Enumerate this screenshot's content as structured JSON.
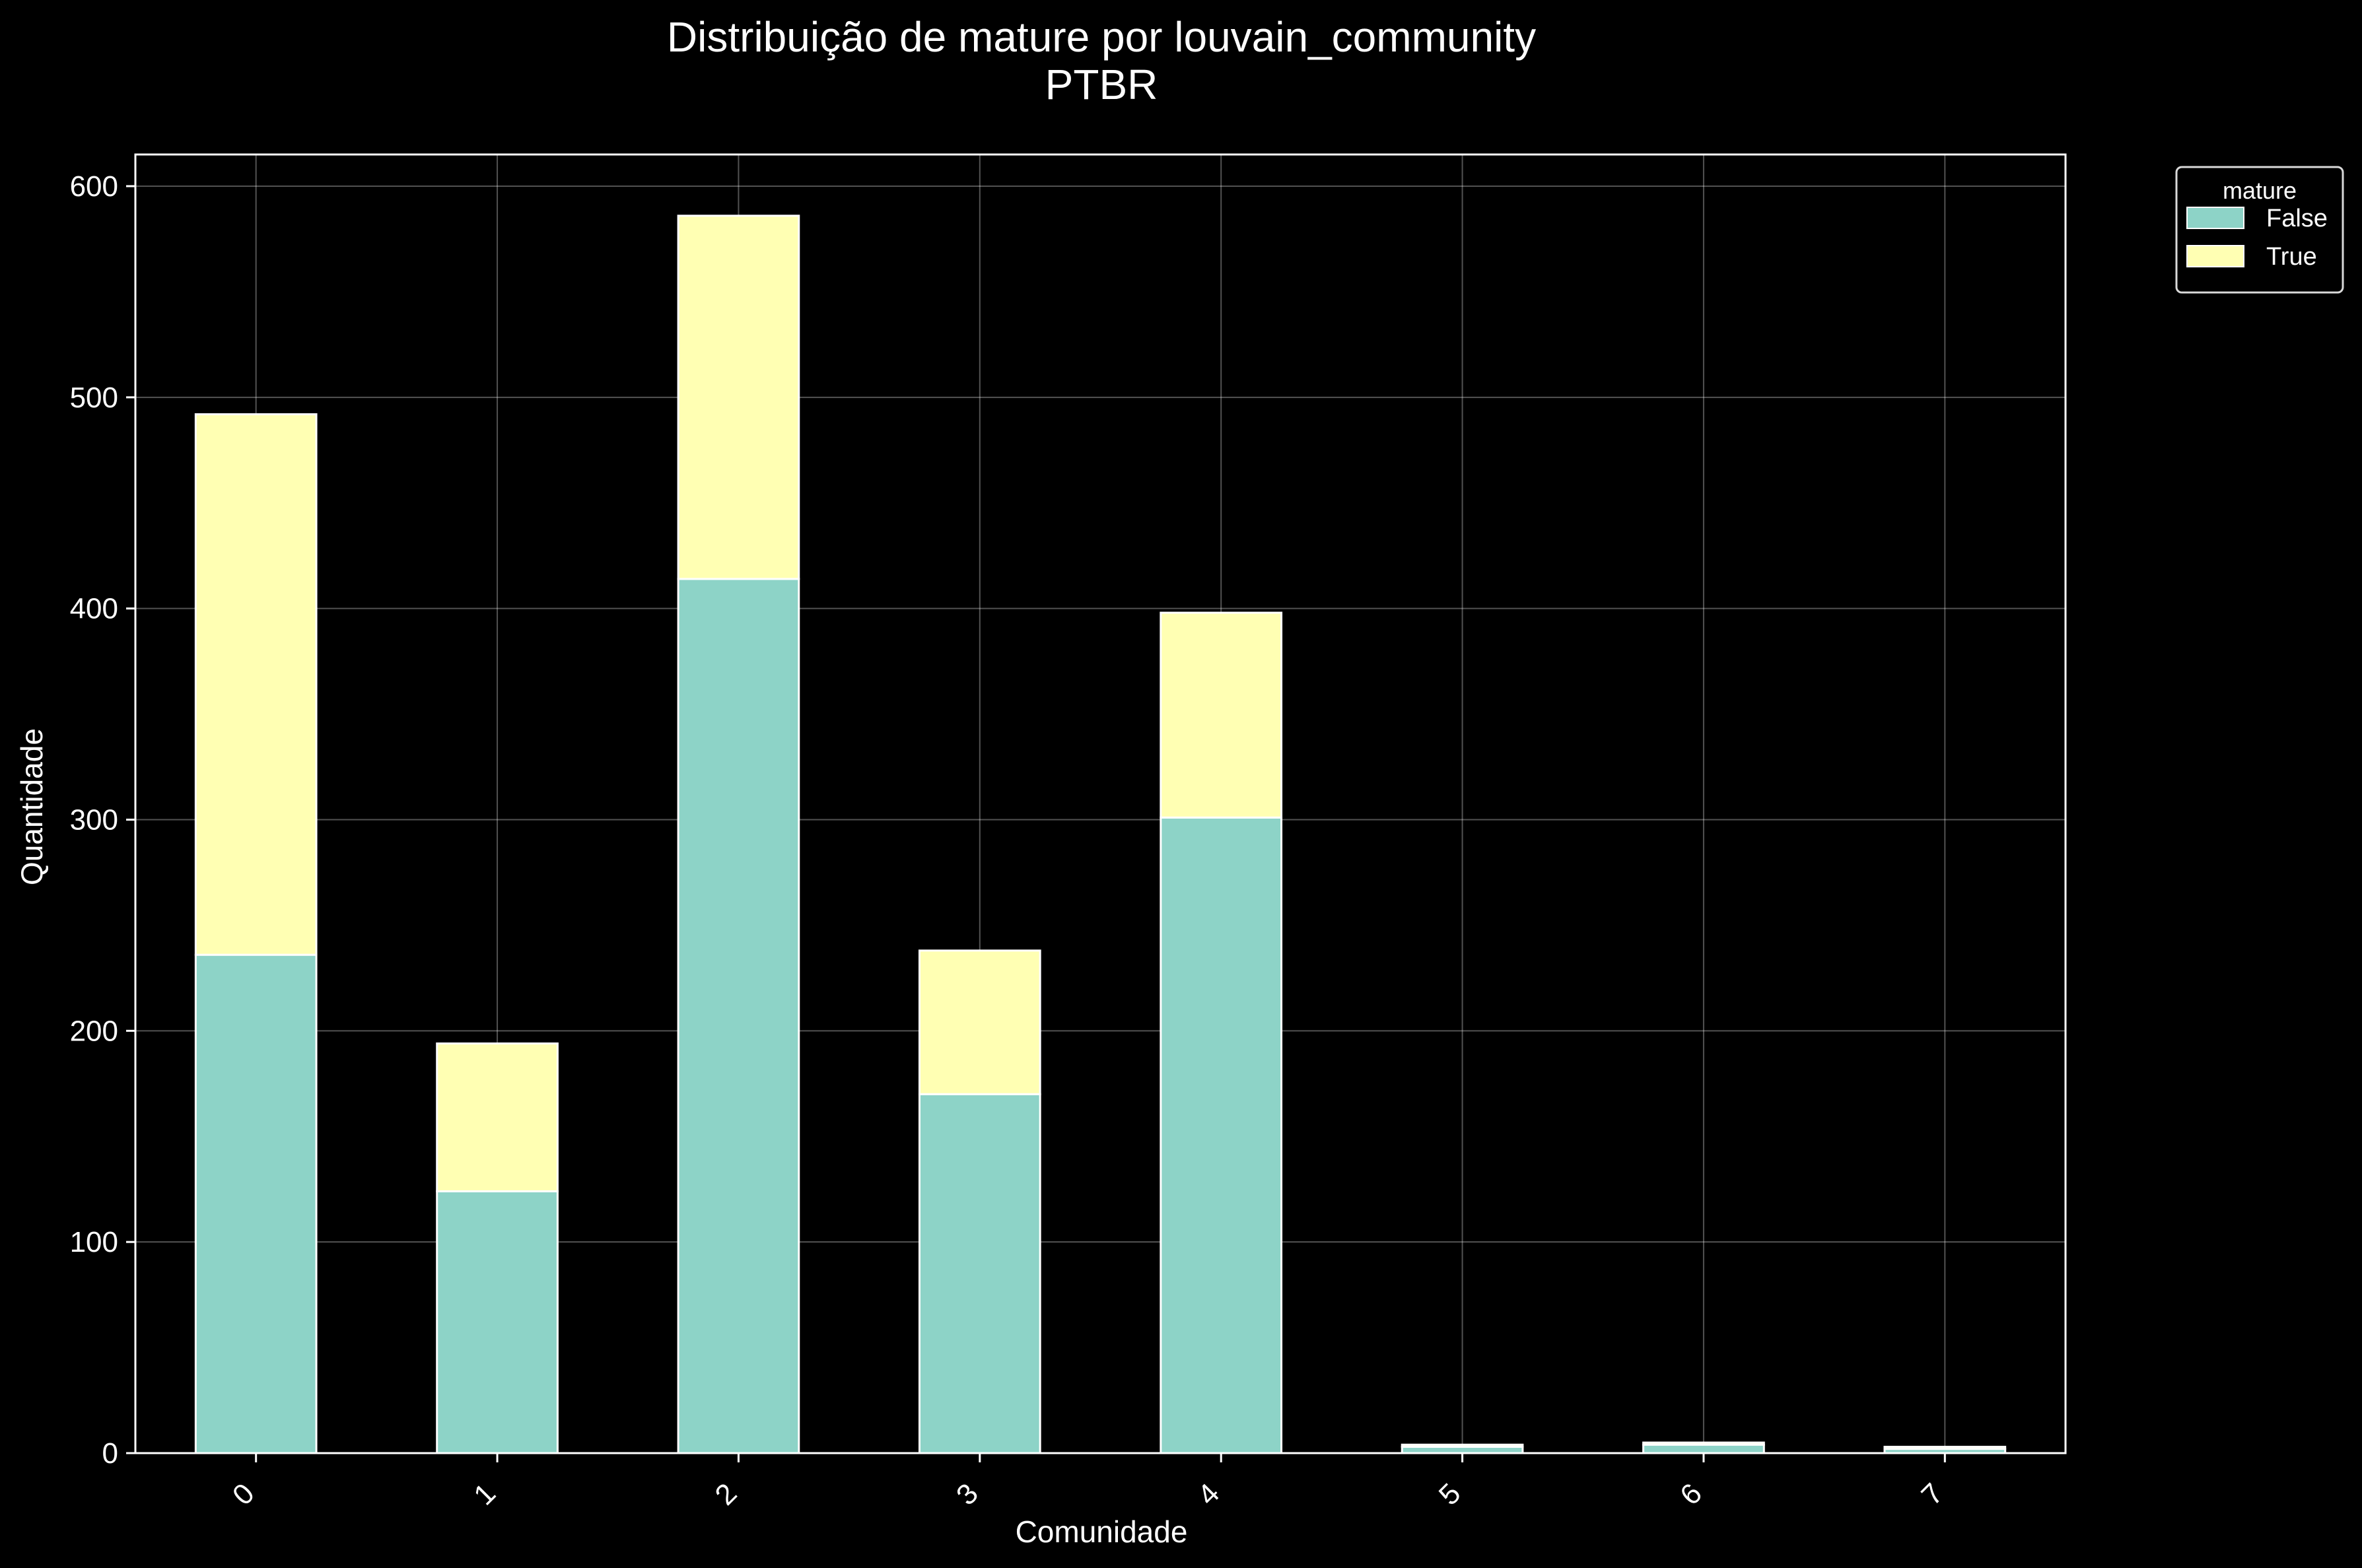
{
  "chart_data": {
    "type": "bar",
    "stacked": true,
    "title": "Distribuição de mature por louvain_community",
    "subtitle": "PTBR",
    "xlabel": "Comunidade",
    "ylabel": "Quantidade",
    "categories": [
      "0",
      "1",
      "2",
      "3",
      "4",
      "5",
      "6",
      "7"
    ],
    "series": [
      {
        "name": "False",
        "color": "#8dd3c7",
        "values": [
          236,
          124,
          414,
          170,
          301,
          3,
          4,
          2
        ]
      },
      {
        "name": "True",
        "color": "#ffffb3",
        "values": [
          256,
          70,
          172,
          68,
          97,
          1,
          1,
          1
        ]
      }
    ],
    "yticks": [
      0,
      100,
      200,
      300,
      400,
      500,
      600
    ],
    "ylim": [
      0,
      615
    ],
    "grid": true,
    "legend": {
      "title": "mature",
      "position": "outside-top-right"
    },
    "background": "#000000"
  }
}
